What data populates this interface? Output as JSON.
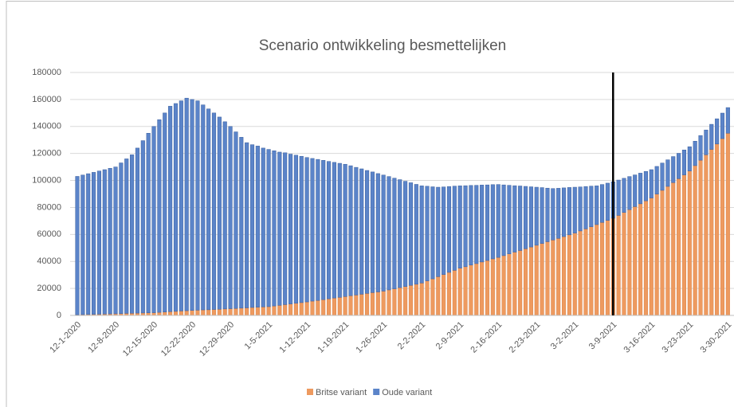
{
  "chart_data": {
    "type": "stacked_bar",
    "title": "Scenario ontwikkeling besmettelijken",
    "categories": [
      "12-1-2020",
      null,
      null,
      null,
      null,
      null,
      null,
      "12-8-2020",
      null,
      null,
      null,
      null,
      null,
      null,
      "12-15-2020",
      null,
      null,
      null,
      null,
      null,
      null,
      "12-22-2020",
      null,
      null,
      null,
      null,
      null,
      null,
      "12-29-2020",
      null,
      null,
      null,
      null,
      null,
      null,
      "1-5-2021",
      null,
      null,
      null,
      null,
      null,
      null,
      "1-12-2021",
      null,
      null,
      null,
      null,
      null,
      null,
      "1-19-2021",
      null,
      null,
      null,
      null,
      null,
      null,
      "1-26-2021",
      null,
      null,
      null,
      null,
      null,
      null,
      "2-2-2021",
      null,
      null,
      null,
      null,
      null,
      null,
      "2-9-2021",
      null,
      null,
      null,
      null,
      null,
      null,
      "2-16-2021",
      null,
      null,
      null,
      null,
      null,
      null,
      "2-23-2021",
      null,
      null,
      null,
      null,
      null,
      null,
      "3-2-2021",
      null,
      null,
      null,
      null,
      null,
      null,
      "3-9-2021",
      null,
      null,
      null,
      null,
      null,
      null,
      "3-16-2021",
      null,
      null,
      null,
      null,
      null,
      null,
      "3-23-2021",
      null,
      null,
      null,
      null,
      null,
      null,
      "3-30-2021"
    ],
    "series": [
      {
        "name": "Britse variant",
        "color": "#ee9a5f",
        "values": [
          500,
          600,
          700,
          800,
          900,
          1000,
          1100,
          1200,
          1300,
          1500,
          1600,
          1700,
          1800,
          1900,
          2000,
          2300,
          2500,
          2800,
          3000,
          3300,
          3500,
          3700,
          3900,
          4100,
          4200,
          4400,
          4600,
          4800,
          5000,
          5200,
          5400,
          5600,
          5900,
          6100,
          6300,
          6500,
          7000,
          7500,
          8000,
          8500,
          9000,
          9500,
          10000,
          10600,
          11100,
          11700,
          12300,
          12900,
          13400,
          14000,
          14600,
          15100,
          15700,
          16300,
          16900,
          17400,
          18000,
          18900,
          19700,
          20600,
          21400,
          22300,
          23100,
          24000,
          25600,
          27100,
          28700,
          30300,
          31900,
          33400,
          35000,
          36100,
          37300,
          38400,
          39600,
          40700,
          41900,
          43000,
          44300,
          45600,
          46900,
          48100,
          49400,
          50700,
          52000,
          53300,
          54600,
          55900,
          57100,
          58400,
          59700,
          61000,
          62600,
          64100,
          65700,
          67300,
          68900,
          70400,
          72000,
          74100,
          76300,
          78400,
          80600,
          82700,
          84900,
          87000,
          89900,
          92700,
          95600,
          98400,
          101300,
          104100,
          107000,
          111000,
          115000,
          119000,
          123000,
          127000,
          131000,
          135000
        ]
      },
      {
        "name": "Oude variant",
        "color": "#5b84c9",
        "values": [
          102500,
          103400,
          104300,
          105200,
          106100,
          107000,
          107900,
          108800,
          111700,
          114500,
          117400,
          122300,
          127700,
          133100,
          138000,
          142700,
          147500,
          152200,
          154000,
          155700,
          157500,
          156300,
          155100,
          151900,
          148800,
          145600,
          142400,
          138700,
          135000,
          130800,
          126600,
          122400,
          120600,
          119400,
          117700,
          116500,
          115000,
          113500,
          112500,
          111000,
          109700,
          108400,
          107000,
          105700,
          104500,
          103200,
          101800,
          100500,
          99300,
          98000,
          96300,
          94600,
          92900,
          91100,
          89400,
          87700,
          86000,
          84000,
          82000,
          80000,
          78000,
          76000,
          74000,
          72000,
          70100,
          68200,
          66300,
          64900,
          63600,
          62400,
          61000,
          60000,
          59000,
          58000,
          57000,
          56000,
          55000,
          54000,
          52400,
          50800,
          49200,
          47800,
          46200,
          44600,
          43000,
          41400,
          39700,
          38100,
          37100,
          36100,
          35100,
          34000,
          32600,
          31400,
          30100,
          28700,
          28100,
          27600,
          27000,
          26200,
          25300,
          24500,
          23500,
          22700,
          21800,
          21000,
          20500,
          20200,
          19700,
          19300,
          18800,
          18500,
          18000,
          18100,
          18300,
          18400,
          18600,
          18700,
          18900,
          19000
        ]
      }
    ],
    "ylim": [
      0,
      180000
    ],
    "yticks": [
      0,
      20000,
      40000,
      60000,
      80000,
      100000,
      120000,
      140000,
      160000,
      180000
    ],
    "grid": true,
    "legend": "bottom",
    "vline_index": 98
  }
}
